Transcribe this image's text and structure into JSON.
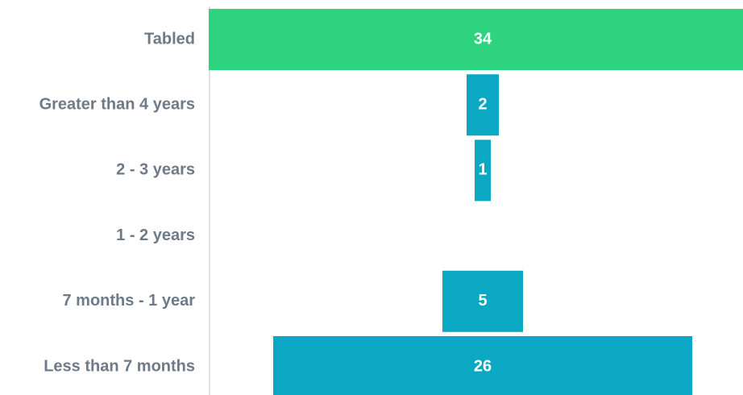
{
  "chart_data": {
    "type": "funnel",
    "categories": [
      "Tabled",
      "Greater than 4 years",
      "2 - 3 years",
      "1 - 2 years",
      "7 months - 1 year",
      "Less than 7 months"
    ],
    "values": [
      34,
      2,
      1,
      0,
      5,
      26
    ],
    "colors": [
      "#2ed27f",
      "#0aa8c3",
      "#0aa8c3",
      "#0aa8c3",
      "#0aa8c3",
      "#0aa8c3"
    ]
  }
}
